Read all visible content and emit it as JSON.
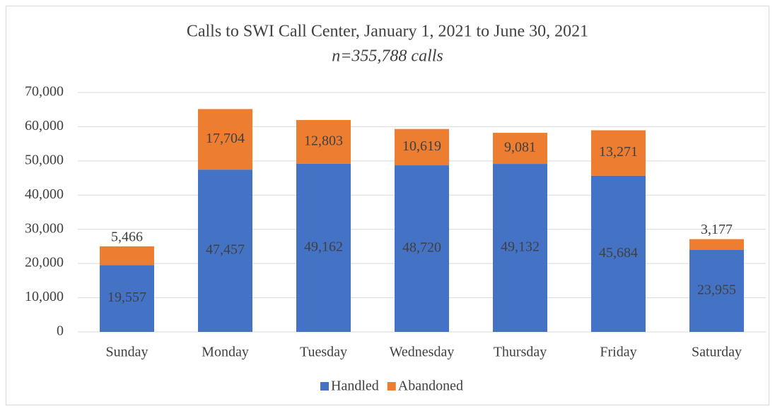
{
  "chart_data": {
    "type": "stacked-bar",
    "title": "Calls to SWI Call Center, January 1, 2021 to June 30, 2021",
    "subtitle": "n=355,788 calls",
    "categories": [
      "Sunday",
      "Monday",
      "Tuesday",
      "Wednesday",
      "Thursday",
      "Friday",
      "Saturday"
    ],
    "series": [
      {
        "name": "Handled",
        "color": "#4472c4",
        "values": [
          19557,
          47457,
          49162,
          48720,
          49132,
          45684,
          23955
        ],
        "value_labels": [
          "19,557",
          "47,457",
          "49,162",
          "48,720",
          "49,132",
          "45,684",
          "23,955"
        ]
      },
      {
        "name": "Abandoned",
        "color": "#ed7d31",
        "values": [
          5466,
          17704,
          12803,
          10619,
          9081,
          13271,
          3177
        ],
        "value_labels": [
          "5,466",
          "17,704",
          "12,803",
          "10,619",
          "9,081",
          "13,271",
          "3,177"
        ]
      }
    ],
    "ylim": [
      0,
      70000
    ],
    "yticks": [
      0,
      {
        "value": 10000,
        "label": "10,000"
      },
      {
        "value": 20000,
        "label": "20,000"
      },
      {
        "value": 30000,
        "label": "30,000"
      },
      {
        "value": 40000,
        "label": "40,000"
      },
      {
        "value": 50000,
        "label": "50,000"
      },
      {
        "value": 60000,
        "label": "60,000"
      },
      {
        "value": 70000,
        "label": "70,000"
      }
    ],
    "grid": true,
    "legend": "bottom"
  }
}
